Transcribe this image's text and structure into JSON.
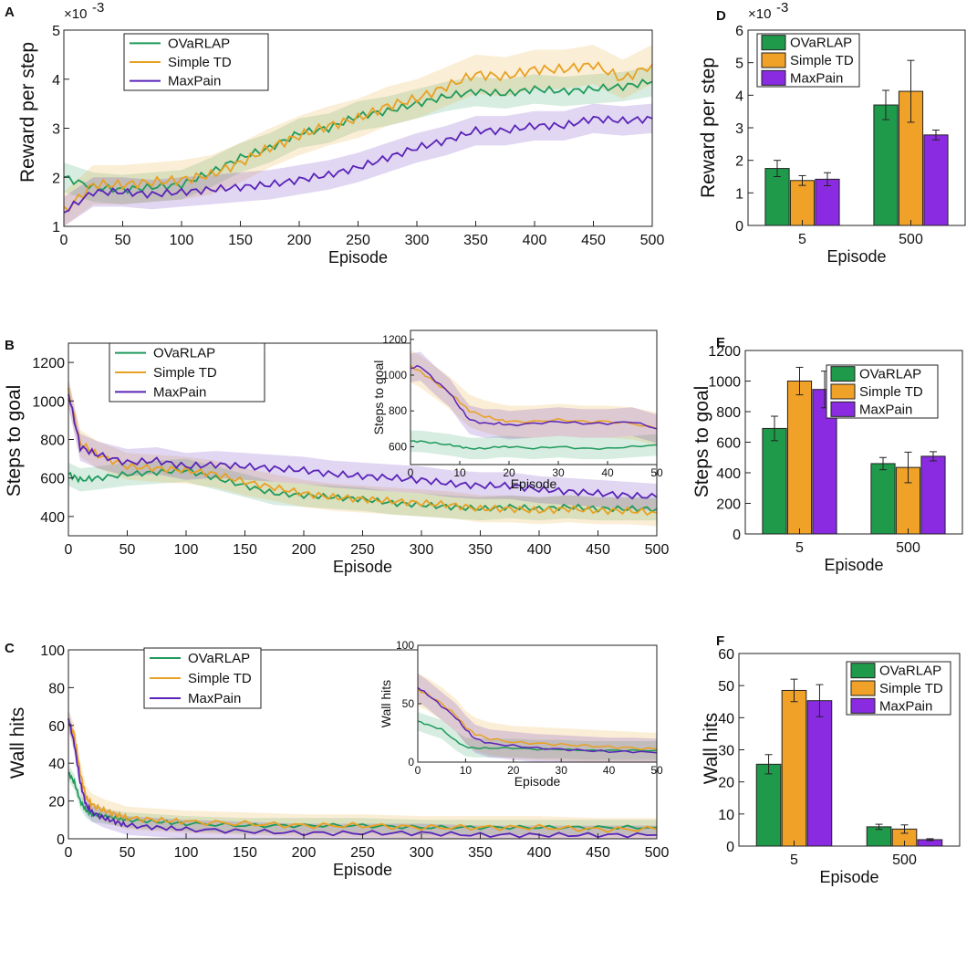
{
  "colors": {
    "OVaRLAP": "#1f9a5b",
    "Simple TD": "#e8a122",
    "MaxPain": "#5a24b8",
    "bar_OVaRLAP": "#1f9a4b",
    "bar_Simple TD": "#f0a127",
    "bar_MaxPain": "#8a2be2"
  },
  "chart_data": [
    {
      "panel": "A",
      "type": "line",
      "xlabel": "Episode",
      "ylabel": "Reward per step",
      "exponent_label": "×10",
      "exponent_power": "-3",
      "xlim": [
        0,
        500
      ],
      "ylim": [
        1,
        5
      ],
      "xticks": [
        "0",
        "50",
        "100",
        "150",
        "200",
        "250",
        "300",
        "350",
        "400",
        "450",
        "500"
      ],
      "yticks": [
        "1",
        "2",
        "3",
        "4",
        "5"
      ],
      "legend_position": "top-left",
      "x": [
        0,
        25,
        50,
        75,
        100,
        125,
        150,
        175,
        200,
        225,
        250,
        275,
        300,
        325,
        350,
        375,
        400,
        425,
        450,
        475,
        500
      ],
      "series": [
        {
          "name": "OVaRLAP",
          "values": [
            2.0,
            1.8,
            1.75,
            1.8,
            1.85,
            2.1,
            2.4,
            2.6,
            2.9,
            3.0,
            3.25,
            3.35,
            3.5,
            3.65,
            3.75,
            3.7,
            3.8,
            3.75,
            3.8,
            3.85,
            3.95
          ],
          "band": 0.3
        },
        {
          "name": "Simple TD",
          "values": [
            1.3,
            1.85,
            1.85,
            1.9,
            1.95,
            2.05,
            2.3,
            2.6,
            2.85,
            3.05,
            3.2,
            3.45,
            3.6,
            3.85,
            4.1,
            4.05,
            4.2,
            4.2,
            4.3,
            4.0,
            4.3
          ],
          "band": 0.4
        },
        {
          "name": "MaxPain",
          "values": [
            1.3,
            1.7,
            1.7,
            1.65,
            1.7,
            1.75,
            1.8,
            1.85,
            1.95,
            2.05,
            2.2,
            2.4,
            2.6,
            2.75,
            2.95,
            2.95,
            3.05,
            3.05,
            3.2,
            3.15,
            3.2
          ],
          "band": 0.3
        }
      ]
    },
    {
      "panel": "B",
      "type": "line",
      "xlabel": "Episode",
      "ylabel": "Steps to goal",
      "xlim": [
        0,
        500
      ],
      "ylim": [
        300,
        1300
      ],
      "xticks": [
        "0",
        "50",
        "100",
        "150",
        "200",
        "250",
        "300",
        "350",
        "400",
        "450",
        "500"
      ],
      "yticks": [
        "400",
        "600",
        "800",
        "1000",
        "1200"
      ],
      "legend_position": "top-left",
      "x": [
        0,
        10,
        25,
        50,
        75,
        100,
        125,
        150,
        175,
        200,
        225,
        250,
        275,
        300,
        325,
        350,
        375,
        400,
        425,
        450,
        475,
        500
      ],
      "series": [
        {
          "name": "OVaRLAP",
          "values": [
            620,
            590,
            600,
            620,
            630,
            640,
            600,
            560,
            520,
            510,
            500,
            490,
            470,
            460,
            450,
            440,
            450,
            440,
            450,
            440,
            440,
            440
          ],
          "band": 60
        },
        {
          "name": "Simple TD",
          "values": [
            1050,
            780,
            720,
            660,
            650,
            640,
            620,
            580,
            550,
            520,
            500,
            490,
            480,
            470,
            460,
            440,
            440,
            430,
            440,
            430,
            430,
            420
          ],
          "band": 70
        },
        {
          "name": "MaxPain",
          "values": [
            1040,
            760,
            720,
            680,
            690,
            660,
            670,
            660,
            650,
            640,
            620,
            610,
            600,
            590,
            570,
            560,
            560,
            540,
            530,
            520,
            510,
            500
          ],
          "band": 70
        }
      ],
      "inset": {
        "xlabel": "Episode",
        "ylabel": "Steps to goal",
        "xlim": [
          0,
          50
        ],
        "ylim": [
          500,
          1250
        ],
        "xticks": [
          "0",
          "10",
          "20",
          "30",
          "40",
          "50"
        ],
        "yticks": [
          "600",
          "800",
          "1000",
          "1200"
        ],
        "x": [
          0,
          2,
          5,
          8,
          10,
          12,
          15,
          18,
          20,
          25,
          30,
          35,
          40,
          45,
          50
        ],
        "series": [
          {
            "name": "OVaRLAP",
            "values": [
              630,
              630,
              620,
              610,
              600,
              590,
              590,
              600,
              600,
              590,
              600,
              590,
              590,
              600,
              610
            ],
            "band": 60
          },
          {
            "name": "Simple TD",
            "values": [
              1050,
              1020,
              960,
              900,
              850,
              800,
              770,
              750,
              740,
              740,
              750,
              740,
              740,
              730,
              700
            ],
            "band": 90
          },
          {
            "name": "MaxPain",
            "values": [
              1040,
              1050,
              970,
              900,
              820,
              750,
              730,
              730,
              720,
              730,
              740,
              730,
              730,
              740,
              700
            ],
            "band": 80
          }
        ]
      }
    },
    {
      "panel": "C",
      "type": "line",
      "xlabel": "Episode",
      "ylabel": "Wall hits",
      "xlim": [
        0,
        500
      ],
      "ylim": [
        0,
        100
      ],
      "xticks": [
        "0",
        "50",
        "100",
        "150",
        "200",
        "250",
        "300",
        "350",
        "400",
        "450",
        "500"
      ],
      "yticks": [
        "0",
        "20",
        "40",
        "60",
        "80",
        "100"
      ],
      "legend_position": "top-center",
      "x": [
        0,
        5,
        10,
        15,
        20,
        30,
        40,
        50,
        75,
        100,
        150,
        200,
        250,
        300,
        350,
        400,
        450,
        500
      ],
      "series": [
        {
          "name": "OVaRLAP",
          "values": [
            35,
            30,
            20,
            15,
            13,
            12,
            11,
            10,
            9,
            8,
            7,
            7,
            7,
            6,
            6,
            6,
            6,
            6
          ],
          "band": 4
        },
        {
          "name": "Simple TD",
          "values": [
            62,
            55,
            35,
            22,
            18,
            15,
            13,
            11,
            10,
            9,
            8,
            7,
            7,
            6,
            6,
            6,
            5,
            5
          ],
          "band": 6
        },
        {
          "name": "MaxPain",
          "values": [
            64,
            50,
            30,
            18,
            14,
            11,
            9,
            7,
            6,
            5,
            4,
            3,
            3,
            3,
            2,
            2,
            2,
            2
          ],
          "band": 5
        }
      ],
      "inset": {
        "xlabel": "Episode",
        "ylabel": "Wall hits",
        "xlim": [
          0,
          50
        ],
        "ylim": [
          0,
          100
        ],
        "xticks": [
          "0",
          "10",
          "20",
          "30",
          "40",
          "50"
        ],
        "yticks": [
          "0",
          "50",
          "100"
        ],
        "x": [
          0,
          2,
          5,
          8,
          10,
          12,
          15,
          20,
          25,
          30,
          35,
          40,
          45,
          50
        ],
        "series": [
          {
            "name": "OVaRLAP",
            "values": [
              35,
              32,
              28,
              18,
              13,
              12,
              12,
              12,
              11,
              11,
              10,
              10,
              10,
              10
            ],
            "band": 8
          },
          {
            "name": "Simple TD",
            "values": [
              62,
              58,
              50,
              40,
              30,
              24,
              20,
              17,
              16,
              15,
              14,
              13,
              12,
              11
            ],
            "band": 14
          },
          {
            "name": "MaxPain",
            "values": [
              64,
              58,
              48,
              38,
              28,
              20,
              16,
              14,
              12,
              11,
              10,
              9,
              9,
              8
            ],
            "band": 12
          }
        ]
      }
    },
    {
      "panel": "D",
      "type": "bar",
      "xlabel": "Episode",
      "ylabel": "Reward per step",
      "exponent_label": "×10",
      "exponent_power": "-3",
      "categories": [
        "5",
        "500"
      ],
      "ylim": [
        0,
        6
      ],
      "yticks": [
        "0",
        "1",
        "2",
        "3",
        "4",
        "5",
        "6"
      ],
      "legend_position": "top-left",
      "series": [
        {
          "name": "OVaRLAP",
          "values": [
            1.75,
            3.7
          ],
          "errors": [
            0.25,
            0.45
          ]
        },
        {
          "name": "Simple TD",
          "values": [
            1.38,
            4.12
          ],
          "errors": [
            0.15,
            0.95
          ]
        },
        {
          "name": "MaxPain",
          "values": [
            1.42,
            2.78
          ],
          "errors": [
            0.2,
            0.15
          ]
        }
      ]
    },
    {
      "panel": "E",
      "type": "bar",
      "xlabel": "Episode",
      "ylabel": "Steps to goal",
      "categories": [
        "5",
        "500"
      ],
      "ylim": [
        0,
        1200
      ],
      "yticks": [
        "0",
        "200",
        "400",
        "600",
        "800",
        "1000",
        "1200"
      ],
      "legend_position": "top-right",
      "series": [
        {
          "name": "OVaRLAP",
          "values": [
            690,
            460
          ],
          "errors": [
            80,
            40
          ]
        },
        {
          "name": "Simple TD",
          "values": [
            1000,
            435
          ],
          "errors": [
            90,
            100
          ]
        },
        {
          "name": "MaxPain",
          "values": [
            945,
            508
          ],
          "errors": [
            120,
            30
          ]
        }
      ]
    },
    {
      "panel": "F",
      "type": "bar",
      "xlabel": "Episode",
      "ylabel": "Wall hits",
      "categories": [
        "5",
        "500"
      ],
      "ylim": [
        0,
        60
      ],
      "yticks": [
        "0",
        "10",
        "20",
        "30",
        "40",
        "50",
        "60"
      ],
      "legend_position": "top-right",
      "series": [
        {
          "name": "OVaRLAP",
          "values": [
            25.5,
            6
          ],
          "errors": [
            3,
            0.8
          ]
        },
        {
          "name": "Simple TD",
          "values": [
            48.5,
            5.3
          ],
          "errors": [
            3.5,
            1.3
          ]
        },
        {
          "name": "MaxPain",
          "values": [
            45.3,
            2
          ],
          "errors": [
            5,
            0.3
          ]
        }
      ]
    }
  ]
}
